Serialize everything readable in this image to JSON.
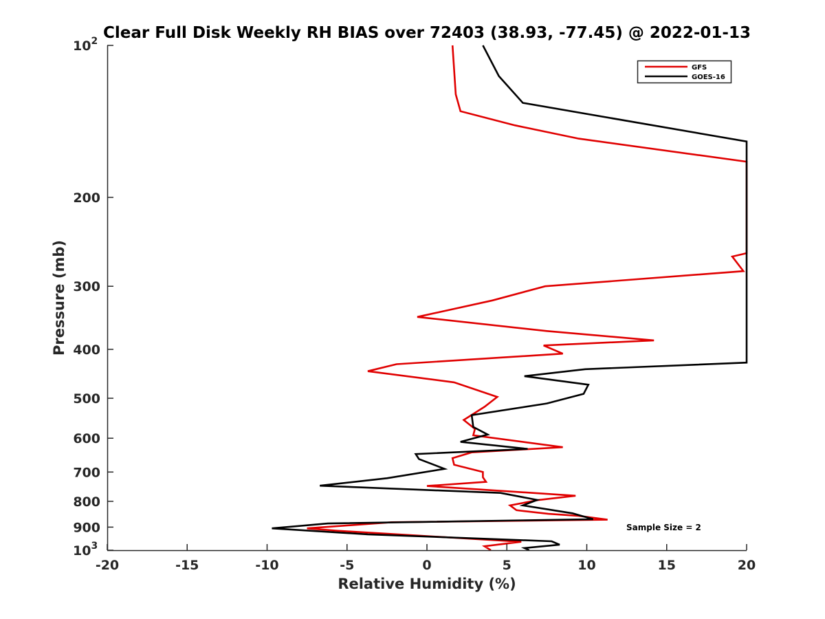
{
  "chart_data": {
    "type": "line",
    "title": "Clear Full Disk Weekly RH BIAS over 72403 (38.93, -77.45) @ 2022-01-13",
    "xlabel": "Relative Humidity (%)",
    "ylabel": "Pressure (mb)",
    "xlim": [
      -20,
      20
    ],
    "ylim": [
      100,
      1000
    ],
    "y_scale": "log",
    "y_reversed": true,
    "grid": false,
    "legend_position": "top-right",
    "x_ticks": [
      "-20",
      "-15",
      "-10",
      "-5",
      "0",
      "5",
      "10",
      "15",
      "20"
    ],
    "y_ticks": [
      "10^2",
      "200",
      "300",
      "400",
      "500",
      "600",
      "700",
      "800",
      "900",
      "10^3"
    ],
    "annotation": "Sample Size = 2",
    "series": [
      {
        "name": "GFS",
        "color": "#e00000",
        "points": [
          [
            1.6,
            100
          ],
          [
            1.8,
            125
          ],
          [
            2.1,
            135
          ],
          [
            5.5,
            144
          ],
          [
            9.5,
            153
          ],
          [
            20,
            170
          ],
          [
            20,
            258
          ],
          [
            19.1,
            262
          ],
          [
            19.8,
            280
          ],
          [
            7.4,
            300
          ],
          [
            4.1,
            320
          ],
          [
            -0.6,
            345
          ],
          [
            7.5,
            368
          ],
          [
            14.2,
            384
          ],
          [
            7.3,
            393
          ],
          [
            8.5,
            408
          ],
          [
            -1.9,
            428
          ],
          [
            -3.7,
            442
          ],
          [
            1.7,
            465
          ],
          [
            4.4,
            497
          ],
          [
            3.6,
            520
          ],
          [
            2.3,
            552
          ],
          [
            3.0,
            575
          ],
          [
            2.9,
            592
          ],
          [
            8.5,
            625
          ],
          [
            2.8,
            640
          ],
          [
            1.6,
            657
          ],
          [
            1.7,
            677
          ],
          [
            3.5,
            700
          ],
          [
            3.5,
            717
          ],
          [
            3.7,
            732
          ],
          [
            0.0,
            746
          ],
          [
            9.3,
            780
          ],
          [
            7.0,
            795
          ],
          [
            5.2,
            815
          ],
          [
            5.6,
            833
          ],
          [
            7.6,
            847
          ],
          [
            9.5,
            855
          ],
          [
            11.3,
            870
          ],
          [
            -2.2,
            880
          ],
          [
            -7.5,
            905
          ],
          [
            -5.6,
            915
          ],
          [
            5.9,
            962
          ],
          [
            3.6,
            982
          ],
          [
            4.0,
            1000
          ]
        ]
      },
      {
        "name": "GOES-16",
        "color": "#000000",
        "points": [
          [
            3.5,
            100
          ],
          [
            4.5,
            115
          ],
          [
            6.0,
            130
          ],
          [
            20,
            155
          ],
          [
            20,
            425
          ],
          [
            9.9,
            438
          ],
          [
            6.1,
            452
          ],
          [
            10.1,
            470
          ],
          [
            9.8,
            490
          ],
          [
            7.5,
            512
          ],
          [
            2.8,
            540
          ],
          [
            2.9,
            570
          ],
          [
            3.8,
            590
          ],
          [
            2.1,
            610
          ],
          [
            6.3,
            630
          ],
          [
            -0.7,
            645
          ],
          [
            -0.5,
            660
          ],
          [
            1.1,
            690
          ],
          [
            -2.5,
            720
          ],
          [
            -6.7,
            745
          ],
          [
            4.6,
            770
          ],
          [
            6.9,
            795
          ],
          [
            6.0,
            815
          ],
          [
            9.1,
            845
          ],
          [
            10.4,
            868
          ],
          [
            -6.2,
            885
          ],
          [
            -9.7,
            905
          ],
          [
            -3.7,
            930
          ],
          [
            7.8,
            960
          ],
          [
            8.3,
            975
          ],
          [
            6.1,
            990
          ],
          [
            6.4,
            1000
          ]
        ]
      }
    ]
  }
}
